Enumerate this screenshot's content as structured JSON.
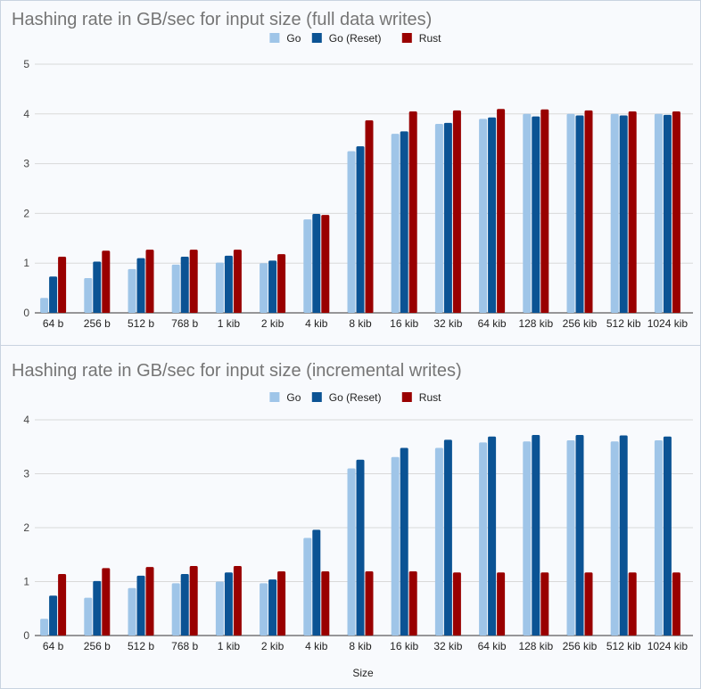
{
  "chart_data": [
    {
      "type": "bar",
      "title": "Hashing rate in GB/sec for input size (full data writes)",
      "xlabel": "",
      "ylabel": "",
      "ylim": [
        0,
        5
      ],
      "yticks": [
        0,
        1,
        2,
        3,
        4,
        5
      ],
      "grid": true,
      "legend": "top-center",
      "categories": [
        "64 b",
        "256 b",
        "512 b",
        "768 b",
        "1 kib",
        "2 kib",
        "4 kib",
        "8 kib",
        "16 kib",
        "32 kib",
        "64 kib",
        "128 kib",
        "256 kib",
        "512 kib",
        "1024 kib"
      ],
      "series": [
        {
          "name": "Go",
          "color": "#9fc5e8",
          "values": [
            0.3,
            0.7,
            0.88,
            0.97,
            1.01,
            1.0,
            1.88,
            3.25,
            3.6,
            3.8,
            3.9,
            4.0,
            4.0,
            4.0,
            4.0
          ]
        },
        {
          "name": "Go (Reset)",
          "color": "#0b5394",
          "values": [
            0.73,
            1.03,
            1.1,
            1.13,
            1.15,
            1.05,
            1.99,
            3.35,
            3.65,
            3.82,
            3.93,
            3.95,
            3.97,
            3.97,
            3.98
          ]
        },
        {
          "name": "Rust",
          "color": "#990000",
          "values": [
            1.13,
            1.25,
            1.27,
            1.27,
            1.27,
            1.18,
            1.97,
            3.87,
            4.05,
            4.07,
            4.1,
            4.09,
            4.07,
            4.05,
            4.05
          ]
        }
      ]
    },
    {
      "type": "bar",
      "title": "Hashing rate in GB/sec for input size (incremental writes)",
      "xlabel": "Size",
      "ylabel": "",
      "ylim": [
        0,
        4
      ],
      "yticks": [
        0,
        1,
        2,
        3,
        4
      ],
      "grid": true,
      "legend": "top-center",
      "categories": [
        "64 b",
        "256 b",
        "512 b",
        "768 b",
        "1 kib",
        "2 kib",
        "4 kib",
        "8 kib",
        "16 kib",
        "32 kib",
        "64 kib",
        "128 kib",
        "256 kib",
        "512 kib",
        "1024 kib"
      ],
      "series": [
        {
          "name": "Go",
          "color": "#9fc5e8",
          "values": [
            0.31,
            0.7,
            0.88,
            0.97,
            1.0,
            0.97,
            1.81,
            3.1,
            3.31,
            3.48,
            3.58,
            3.6,
            3.62,
            3.6,
            3.62
          ]
        },
        {
          "name": "Go (Reset)",
          "color": "#0b5394",
          "values": [
            0.74,
            1.01,
            1.11,
            1.14,
            1.17,
            1.04,
            1.96,
            3.26,
            3.48,
            3.63,
            3.69,
            3.72,
            3.72,
            3.71,
            3.69
          ]
        },
        {
          "name": "Rust",
          "color": "#990000",
          "values": [
            1.14,
            1.25,
            1.27,
            1.29,
            1.29,
            1.19,
            1.19,
            1.19,
            1.19,
            1.17,
            1.17,
            1.17,
            1.17,
            1.17,
            1.17
          ]
        }
      ]
    }
  ]
}
